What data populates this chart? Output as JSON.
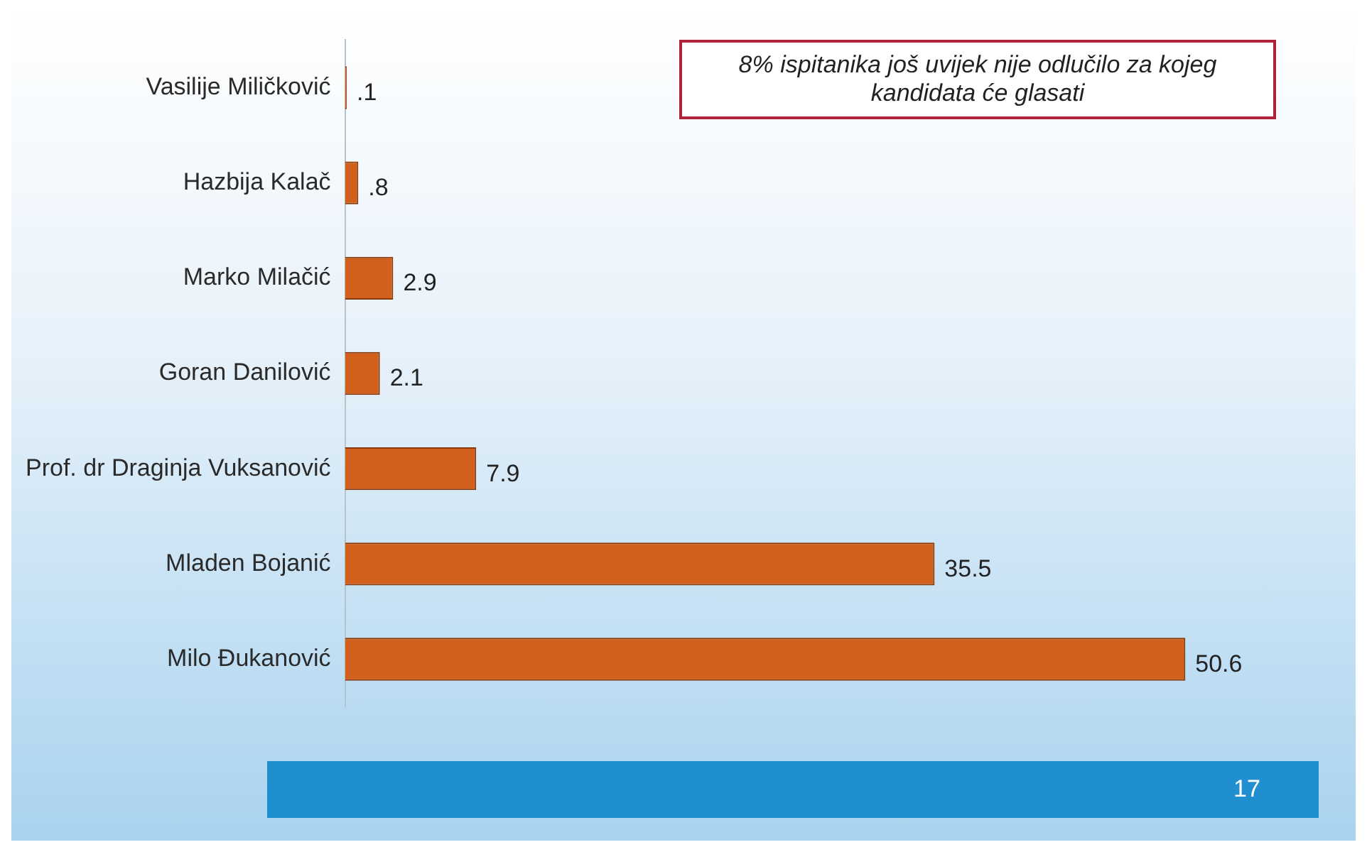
{
  "chart_data": {
    "type": "bar",
    "orientation": "horizontal",
    "categories": [
      "Vasilije Miličković",
      "Hazbija Kalač",
      "Marko Milačić",
      "Goran Danilović",
      "Prof. dr Draginja Vuksanović",
      "Mladen Bojanić",
      "Milo Đukanović"
    ],
    "series": [
      {
        "color": "#d0601c",
        "values": [
          0.1,
          0.8,
          2.9,
          2.1,
          7.9,
          35.5,
          50.6
        ],
        "value_labels": [
          ".1",
          ".8",
          "2.9",
          "2.1",
          "7.9",
          "35.5",
          "50.6"
        ]
      }
    ],
    "tick_labels": "y",
    "legend": false,
    "annotations": [
      "8% ispitanika još uvijek nije odlučilo za kojeg kandidata će glasati",
      "17"
    ]
  }
}
